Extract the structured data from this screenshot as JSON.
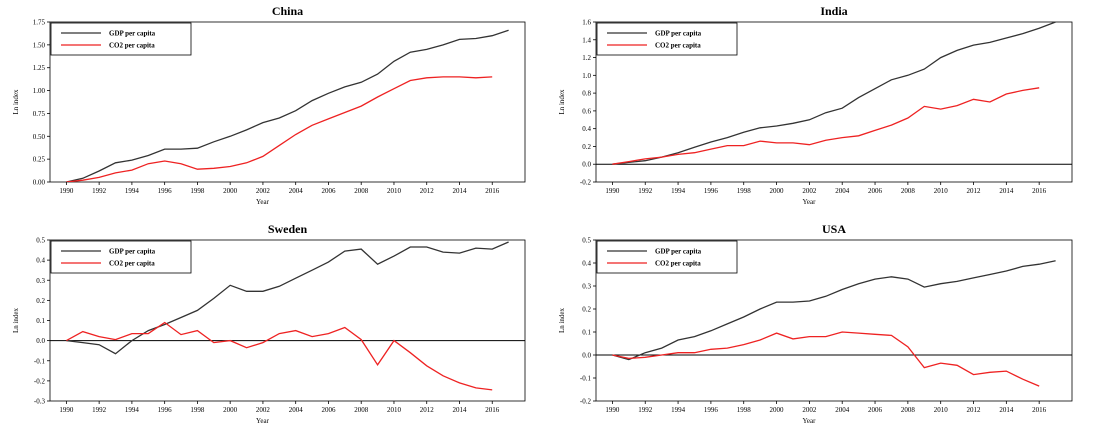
{
  "chart_data": [
    {
      "type": "line",
      "title": "China",
      "xlabel": "Year",
      "ylabel": "Ln index",
      "xlim": [
        1989,
        2018
      ],
      "ylim": [
        0,
        1.75
      ],
      "xticks": [
        1990,
        1992,
        1994,
        1996,
        1998,
        2000,
        2002,
        2004,
        2006,
        2008,
        2010,
        2012,
        2014,
        2016
      ],
      "xtick_labels": [
        "1990",
        "1992",
        "1994",
        "1996",
        "1998",
        "2000",
        "2002",
        "2004",
        "2006",
        "2008",
        "2010",
        "2012",
        "2014",
        "2016"
      ],
      "yticks": [
        0,
        0.25,
        0.5,
        0.75,
        1.0,
        1.25,
        1.5,
        1.75
      ],
      "ytick_labels": [
        "0.00",
        "0.25",
        "0.50",
        "0.75",
        "1.00",
        "1.25",
        "1.50",
        "1.75"
      ],
      "zero_line": false,
      "legend_placement": "top-left",
      "series": [
        {
          "name": "GDP per capita",
          "color": "#333333",
          "x": [
            1990,
            1991,
            1992,
            1993,
            1994,
            1995,
            1996,
            1997,
            1998,
            1999,
            2000,
            2001,
            2002,
            2003,
            2004,
            2005,
            2006,
            2007,
            2008,
            2009,
            2010,
            2011,
            2012,
            2013,
            2014,
            2015,
            2016,
            2017
          ],
          "values": [
            0,
            0.04,
            0.12,
            0.21,
            0.24,
            0.29,
            0.36,
            0.36,
            0.37,
            0.44,
            0.5,
            0.57,
            0.65,
            0.7,
            0.78,
            0.89,
            0.97,
            1.04,
            1.09,
            1.18,
            1.32,
            1.42,
            1.45,
            1.5,
            1.56,
            1.57,
            1.6,
            1.66
          ]
        },
        {
          "name": "CO2 per capita",
          "color": "#ee2222",
          "x": [
            1990,
            1991,
            1992,
            1993,
            1994,
            1995,
            1996,
            1997,
            1998,
            1999,
            2000,
            2001,
            2002,
            2003,
            2004,
            2005,
            2006,
            2007,
            2008,
            2009,
            2010,
            2011,
            2012,
            2013,
            2014,
            2015,
            2016
          ],
          "values": [
            0,
            0.02,
            0.05,
            0.1,
            0.13,
            0.2,
            0.23,
            0.2,
            0.14,
            0.15,
            0.17,
            0.21,
            0.28,
            0.4,
            0.52,
            0.62,
            0.69,
            0.76,
            0.83,
            0.93,
            1.02,
            1.11,
            1.14,
            1.15,
            1.15,
            1.14,
            1.15
          ]
        }
      ]
    },
    {
      "type": "line",
      "title": "India",
      "xlabel": "Year",
      "ylabel": "Ln index",
      "xlim": [
        1989,
        2018
      ],
      "ylim": [
        -0.2,
        1.6
      ],
      "xticks": [
        1990,
        1992,
        1994,
        1996,
        1998,
        2000,
        2002,
        2004,
        2006,
        2008,
        2010,
        2012,
        2014,
        2016
      ],
      "xtick_labels": [
        "1990",
        "1992",
        "1994",
        "1996",
        "1998",
        "2000",
        "2002",
        "2004",
        "2006",
        "2008",
        "2010",
        "2012",
        "2014",
        "2016"
      ],
      "yticks": [
        -0.2,
        0,
        0.2,
        0.4,
        0.6,
        0.8,
        1.0,
        1.2,
        1.4,
        1.6
      ],
      "ytick_labels": [
        "-0.2",
        "0.0",
        "0.2",
        "0.4",
        "0.6",
        "0.8",
        "1.0",
        "1.2",
        "1.4",
        "1.6"
      ],
      "zero_line": true,
      "legend_placement": "top-left",
      "series": [
        {
          "name": "GDP per capita",
          "color": "#333333",
          "x": [
            1990,
            1991,
            1992,
            1993,
            1994,
            1995,
            1996,
            1997,
            1998,
            1999,
            2000,
            2001,
            2002,
            2003,
            2004,
            2005,
            2006,
            2007,
            2008,
            2009,
            2010,
            2011,
            2012,
            2013,
            2014,
            2015,
            2016,
            2017
          ],
          "values": [
            0,
            0.02,
            0.04,
            0.08,
            0.13,
            0.19,
            0.25,
            0.3,
            0.36,
            0.41,
            0.43,
            0.46,
            0.5,
            0.58,
            0.63,
            0.75,
            0.85,
            0.95,
            1.0,
            1.07,
            1.2,
            1.28,
            1.34,
            1.37,
            1.42,
            1.47,
            1.53,
            1.6
          ]
        },
        {
          "name": "CO2 per capita",
          "color": "#ee2222",
          "x": [
            1990,
            1991,
            1992,
            1993,
            1994,
            1995,
            1996,
            1997,
            1998,
            1999,
            2000,
            2001,
            2002,
            2003,
            2004,
            2005,
            2006,
            2007,
            2008,
            2009,
            2010,
            2011,
            2012,
            2013,
            2014,
            2015,
            2016
          ],
          "values": [
            0,
            0.03,
            0.06,
            0.08,
            0.11,
            0.13,
            0.17,
            0.21,
            0.21,
            0.26,
            0.24,
            0.24,
            0.22,
            0.27,
            0.3,
            0.32,
            0.38,
            0.44,
            0.52,
            0.65,
            0.62,
            0.66,
            0.73,
            0.7,
            0.79,
            0.83,
            0.86
          ]
        }
      ]
    },
    {
      "type": "line",
      "title": "Sweden",
      "xlabel": "Year",
      "ylabel": "Ln index",
      "xlim": [
        1989,
        2018
      ],
      "ylim": [
        -0.3,
        0.5
      ],
      "xticks": [
        1990,
        1992,
        1994,
        1996,
        1998,
        2000,
        2002,
        2004,
        2006,
        2008,
        2010,
        2012,
        2014,
        2016
      ],
      "xtick_labels": [
        "1990",
        "1992",
        "1994",
        "1996",
        "1998",
        "2000",
        "2002",
        "2004",
        "2006",
        "2008",
        "2010",
        "2012",
        "2014",
        "2016"
      ],
      "yticks": [
        -0.3,
        -0.2,
        -0.1,
        0,
        0.1,
        0.2,
        0.3,
        0.4,
        0.5
      ],
      "ytick_labels": [
        "-0.3",
        "-0.2",
        "-0.1",
        "0.0",
        "0.1",
        "0.2",
        "0.3",
        "0.4",
        "0.5"
      ],
      "zero_line": true,
      "legend_placement": "top-left",
      "series": [
        {
          "name": "GDP per capita",
          "color": "#333333",
          "x": [
            1990,
            1991,
            1992,
            1993,
            1994,
            1995,
            1996,
            1997,
            1998,
            1999,
            2000,
            2001,
            2002,
            2003,
            2004,
            2005,
            2006,
            2007,
            2008,
            2009,
            2010,
            2011,
            2012,
            2013,
            2014,
            2015,
            2016,
            2017
          ],
          "values": [
            0,
            -0.01,
            -0.02,
            -0.065,
            0,
            0.05,
            0.08,
            0.115,
            0.15,
            0.21,
            0.275,
            0.245,
            0.245,
            0.27,
            0.31,
            0.35,
            0.39,
            0.445,
            0.455,
            0.38,
            0.42,
            0.465,
            0.465,
            0.44,
            0.435,
            0.46,
            0.455,
            0.49
          ]
        },
        {
          "name": "CO2 per capita",
          "color": "#ee2222",
          "x": [
            1990,
            1991,
            1992,
            1993,
            1994,
            1995,
            1996,
            1997,
            1998,
            1999,
            2000,
            2001,
            2002,
            2003,
            2004,
            2005,
            2006,
            2007,
            2008,
            2009,
            2010,
            2011,
            2012,
            2013,
            2014,
            2015,
            2016
          ],
          "values": [
            0,
            0.045,
            0.02,
            0.005,
            0.035,
            0.035,
            0.09,
            0.03,
            0.05,
            -0.01,
            0,
            -0.035,
            -0.01,
            0.035,
            0.05,
            0.02,
            0.035,
            0.065,
            0.005,
            -0.12,
            0,
            -0.06,
            -0.125,
            -0.175,
            -0.21,
            -0.235,
            -0.245
          ]
        }
      ]
    },
    {
      "type": "line",
      "title": "USA",
      "xlabel": "Year",
      "ylabel": "Ln index",
      "xlim": [
        1989,
        2018
      ],
      "ylim": [
        -0.2,
        0.5
      ],
      "xticks": [
        1990,
        1992,
        1994,
        1996,
        1998,
        2000,
        2002,
        2004,
        2006,
        2008,
        2010,
        2012,
        2014,
        2016
      ],
      "xtick_labels": [
        "1990",
        "1992",
        "1994",
        "1996",
        "1998",
        "2000",
        "2002",
        "2004",
        "2006",
        "2008",
        "2010",
        "2012",
        "2014",
        "2016"
      ],
      "yticks": [
        -0.2,
        -0.1,
        0,
        0.1,
        0.2,
        0.3,
        0.4,
        0.5
      ],
      "ytick_labels": [
        "-0.2",
        "-0.1",
        "0.0",
        "0.1",
        "0.2",
        "0.3",
        "0.4",
        "0.5"
      ],
      "zero_line": true,
      "legend_placement": "top-left",
      "series": [
        {
          "name": "GDP per capita",
          "color": "#333333",
          "x": [
            1990,
            1991,
            1992,
            1993,
            1994,
            1995,
            1996,
            1997,
            1998,
            1999,
            2000,
            2001,
            2002,
            2003,
            2004,
            2005,
            2006,
            2007,
            2008,
            2009,
            2010,
            2011,
            2012,
            2013,
            2014,
            2015,
            2016,
            2017
          ],
          "values": [
            0,
            -0.02,
            0.01,
            0.03,
            0.065,
            0.08,
            0.105,
            0.135,
            0.165,
            0.2,
            0.23,
            0.23,
            0.235,
            0.255,
            0.285,
            0.31,
            0.33,
            0.34,
            0.33,
            0.295,
            0.31,
            0.32,
            0.335,
            0.35,
            0.365,
            0.385,
            0.395,
            0.41
          ]
        },
        {
          "name": "CO2 per capita",
          "color": "#ee2222",
          "x": [
            1990,
            1991,
            1992,
            1993,
            1994,
            1995,
            1996,
            1997,
            1998,
            1999,
            2000,
            2001,
            2002,
            2003,
            2004,
            2005,
            2006,
            2007,
            2008,
            2009,
            2010,
            2011,
            2012,
            2013,
            2014,
            2015,
            2016
          ],
          "values": [
            0,
            -0.015,
            -0.01,
            0,
            0.01,
            0.01,
            0.025,
            0.03,
            0.045,
            0.065,
            0.095,
            0.07,
            0.08,
            0.08,
            0.1,
            0.095,
            0.09,
            0.085,
            0.035,
            -0.055,
            -0.035,
            -0.045,
            -0.085,
            -0.075,
            -0.07,
            -0.105,
            -0.135
          ]
        }
      ]
    }
  ]
}
